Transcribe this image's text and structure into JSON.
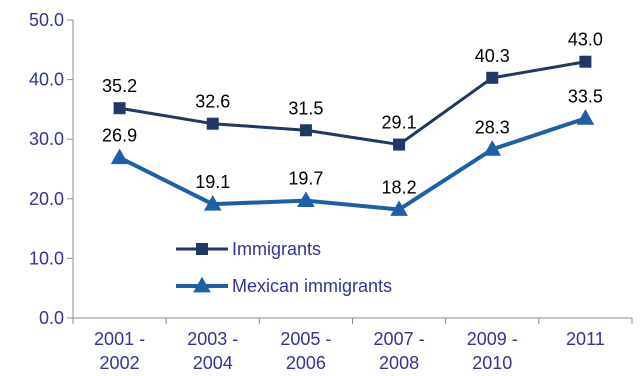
{
  "chart_data": {
    "type": "line",
    "categories": [
      [
        "2001 -",
        "2002"
      ],
      [
        "2003 -",
        "2004"
      ],
      [
        "2005 -",
        "2006"
      ],
      [
        "2007 -",
        "2008"
      ],
      [
        "2009 -",
        "2010"
      ],
      [
        "2011",
        ""
      ]
    ],
    "y_ticks": [
      "0.0",
      "10.0",
      "20.0",
      "30.0",
      "40.0",
      "50.0"
    ],
    "ylim": [
      0,
      50
    ],
    "grid": false,
    "legend_position": "bottom-center-left",
    "series": [
      {
        "name": "Immigrants",
        "values": [
          35.2,
          32.6,
          31.5,
          29.1,
          40.3,
          43.0
        ],
        "labels": [
          "35.2",
          "32.6",
          "31.5",
          "29.1",
          "40.3",
          "43.0"
        ],
        "color": "#1f3864",
        "marker": "square"
      },
      {
        "name": "Mexican immigrants",
        "values": [
          26.9,
          19.1,
          19.7,
          18.2,
          28.3,
          33.5
        ],
        "labels": [
          "26.9",
          "19.1",
          "19.7",
          "18.2",
          "28.3",
          "33.5"
        ],
        "color": "#1f5fa8",
        "marker": "triangle"
      }
    ],
    "axis_color": "#8c8c8c"
  }
}
